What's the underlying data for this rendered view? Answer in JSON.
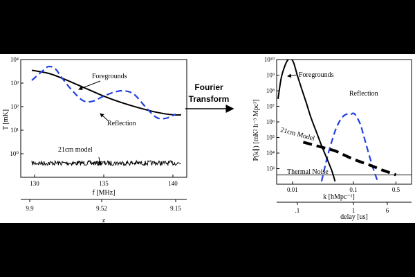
{
  "transform_label_line1": "Fourier",
  "transform_label_line2": "Transform",
  "chart_data": [
    {
      "type": "line",
      "panel": "left",
      "ylabel": "T [mK]",
      "xlabel": "f [MHz]",
      "secondary_xlabel": "z",
      "yscale": "log",
      "ylim": [
        0.1,
        10000
      ],
      "xlim": [
        129.0,
        141.0
      ],
      "x_ticks": [
        130,
        135,
        140
      ],
      "x_tick_labels": [
        "130",
        "135",
        "140"
      ],
      "secondary_x_ticks": [
        129.65,
        134.85,
        140.2
      ],
      "secondary_x_tick_labels": [
        "9.9",
        "9.52",
        "9.15"
      ],
      "y_ticks": [
        1,
        10,
        100,
        1000,
        10000
      ],
      "series": [
        {
          "name": "Foregrounds",
          "x": [
            129.8,
            131.0,
            132.0,
            133.0,
            134.0,
            135.0,
            136.0,
            137.0,
            138.0,
            139.0,
            140.0,
            140.6
          ],
          "y": [
            3500,
            2600,
            1600,
            900,
            500,
            280,
            170,
            110,
            75,
            55,
            45,
            45
          ]
        },
        {
          "name": "Reflection",
          "x": [
            129.8,
            130.5,
            131.0,
            131.5,
            132.0,
            132.7,
            133.5,
            134.2,
            135.0,
            135.8,
            136.5,
            137.2,
            138.0,
            138.8,
            139.5,
            140.2
          ],
          "y": [
            1300,
            3000,
            5000,
            4000,
            1600,
            500,
            180,
            170,
            280,
            420,
            470,
            330,
            100,
            35,
            32,
            48
          ]
        },
        {
          "name": "21cm model",
          "x_range": [
            129.8,
            140.6
          ],
          "y_level": 0.4,
          "noise": true
        }
      ],
      "annotations": [
        "Foregrounds",
        "Reflection",
        "21cm model"
      ]
    },
    {
      "type": "line",
      "panel": "right",
      "ylabel": "P(k∥) [mK² h⁻³ Mpc³]",
      "xlabel": "k [hMpc⁻¹]",
      "secondary_xlabel": "delay [us]",
      "xscale": "log",
      "yscale": "log",
      "xlim": [
        0.0055,
        0.9
      ],
      "ylim": [
        100,
        10000000000
      ],
      "x_ticks": [
        0.01,
        0.1,
        0.5
      ],
      "x_tick_labels": [
        "0.01",
        "0.1",
        "0.5"
      ],
      "secondary_x_ticks": [
        0.012,
        0.1,
        0.36
      ],
      "secondary_x_tick_labels": [
        ".1",
        "1",
        "6"
      ],
      "y_ticks": [
        1000,
        10000,
        100000,
        1000000,
        10000000,
        100000000,
        1000000000,
        10000000000
      ],
      "series": [
        {
          "name": "Foregrounds",
          "x": [
            0.0058,
            0.0065,
            0.0075,
            0.0085,
            0.0095,
            0.0105,
            0.012,
            0.014,
            0.017,
            0.02,
            0.025,
            0.03,
            0.035,
            0.04,
            0.045,
            0.05
          ],
          "y": [
            30000000,
            600000000,
            4000000000,
            10000000000,
            11000000000,
            6000000000,
            1000000000,
            150000000,
            15000000,
            2000000,
            200000,
            30000,
            7000,
            2000,
            600,
            150
          ]
        },
        {
          "name": "Reflection",
          "x": [
            0.03,
            0.035,
            0.04,
            0.05,
            0.06,
            0.07,
            0.08,
            0.09,
            0.1,
            0.11,
            0.13,
            0.15,
            0.2,
            0.25
          ],
          "y": [
            150,
            2000,
            15000,
            250000,
            1200000,
            2500000,
            3200000,
            3000000,
            3600000,
            2500000,
            700000,
            100000,
            2000,
            150
          ]
        },
        {
          "name": "21cm Model",
          "x": [
            0.015,
            0.05,
            0.1,
            0.2,
            0.3,
            0.5
          ],
          "y": [
            50000,
            14000,
            4000,
            1500,
            800,
            400
          ]
        },
        {
          "name": "Thermal Noise",
          "x": [
            0.0055,
            0.9
          ],
          "y": [
            390,
            390
          ]
        }
      ],
      "annotations": [
        "Foregrounds",
        "Reflection",
        "21cm Model",
        "Thermal Noise"
      ]
    }
  ]
}
